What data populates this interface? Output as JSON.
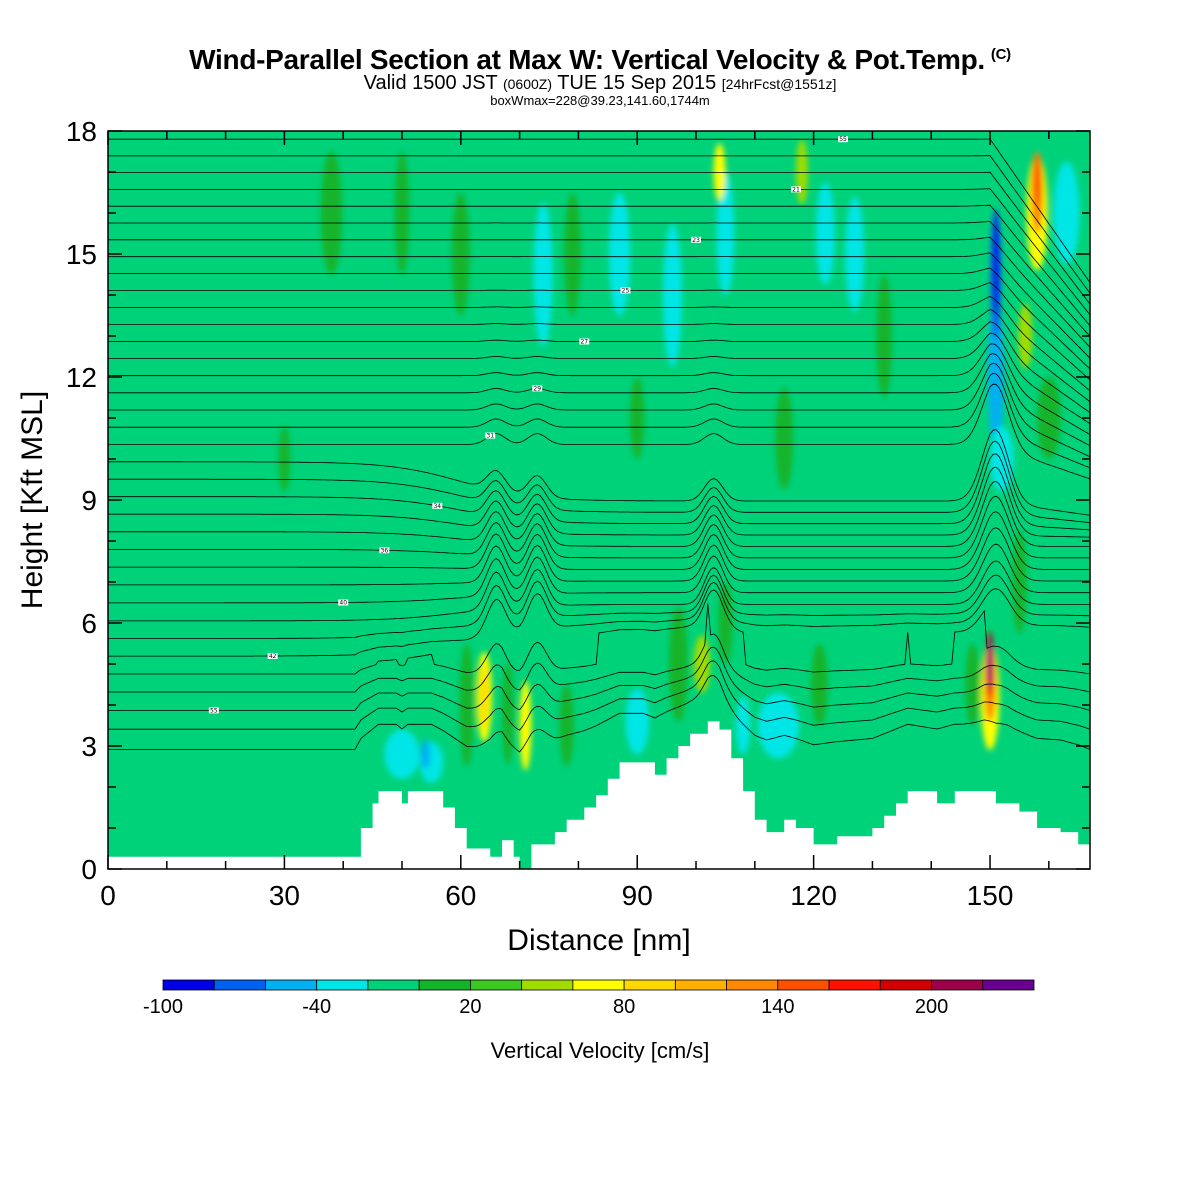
{
  "header": {
    "title_main": "Wind-Parallel Section at Max W: Vertical Velocity & Pot.Temp.",
    "title_mark": "(C)",
    "valid_prefix": "Valid 1500 JST",
    "valid_utc": "(0600Z)",
    "valid_date": "TUE 15 Sep 2015",
    "forecast": "[24hrFcst@1551z]",
    "box_info": "boxWmax=228@39.23,141.60,1744m"
  },
  "chart_data": {
    "type": "heatmap",
    "xlabel": "Distance [nm]",
    "ylabel": "Height [Kft MSL]",
    "xlim": [
      0,
      167
    ],
    "ylim": [
      0,
      18
    ],
    "x_ticks": [
      0,
      30,
      60,
      90,
      120,
      150
    ],
    "y_ticks": [
      0,
      3,
      6,
      9,
      12,
      15,
      18
    ],
    "colorbar": {
      "title": "Vertical Velocity [cm/s]",
      "labels": [
        "-100",
        "-40",
        "20",
        "80",
        "140",
        "200"
      ],
      "colors": [
        "#0000e6",
        "#0060f0",
        "#00b0f0",
        "#00e6e6",
        "#00d27a",
        "#12b42a",
        "#3cc820",
        "#a0dc00",
        "#ffff00",
        "#ffd800",
        "#ffb000",
        "#ff8800",
        "#ff5000",
        "#ff1000",
        "#d20000",
        "#9c0048",
        "#6a0090"
      ]
    },
    "background_color": "#00d27a",
    "terrain": [
      [
        0,
        0.3
      ],
      [
        42,
        0.3
      ],
      [
        43,
        1.0
      ],
      [
        45,
        1.6
      ],
      [
        46,
        1.9
      ],
      [
        49,
        1.9
      ],
      [
        50,
        1.6
      ],
      [
        51,
        1.9
      ],
      [
        55,
        1.9
      ],
      [
        57,
        1.5
      ],
      [
        59,
        1.0
      ],
      [
        61,
        0.5
      ],
      [
        65,
        0.3
      ],
      [
        67,
        0.7
      ],
      [
        69,
        0.3
      ],
      [
        70,
        0.0
      ],
      [
        72,
        0.6
      ],
      [
        76,
        0.9
      ],
      [
        78,
        1.2
      ],
      [
        81,
        1.5
      ],
      [
        83,
        1.8
      ],
      [
        85,
        2.2
      ],
      [
        87,
        2.6
      ],
      [
        91,
        2.6
      ],
      [
        93,
        2.3
      ],
      [
        95,
        2.7
      ],
      [
        97,
        3.0
      ],
      [
        99,
        3.3
      ],
      [
        102,
        3.6
      ],
      [
        104,
        3.4
      ],
      [
        106,
        2.7
      ],
      [
        108,
        1.9
      ],
      [
        110,
        1.2
      ],
      [
        112,
        0.9
      ],
      [
        115,
        1.2
      ],
      [
        117,
        1.0
      ],
      [
        120,
        0.6
      ],
      [
        124,
        0.8
      ],
      [
        130,
        1.0
      ],
      [
        132,
        1.3
      ],
      [
        134,
        1.6
      ],
      [
        136,
        1.9
      ],
      [
        141,
        1.6
      ],
      [
        144,
        1.9
      ],
      [
        149,
        1.9
      ],
      [
        151,
        1.6
      ],
      [
        153,
        1.6
      ],
      [
        155,
        1.4
      ],
      [
        158,
        1.0
      ],
      [
        162,
        0.9
      ],
      [
        165,
        0.6
      ],
      [
        167,
        0.3
      ]
    ],
    "blobs": [
      {
        "x": 151,
        "y": 12.0,
        "w": 1.4,
        "h": 3.6,
        "c": "#00b0f0"
      },
      {
        "x": 151,
        "y": 14.5,
        "w": 0.9,
        "h": 3.2,
        "c": "#0060f0"
      },
      {
        "x": 151,
        "y": 14.8,
        "w": 0.5,
        "h": 2.6,
        "c": "#0000e6"
      },
      {
        "x": 152,
        "y": 10.0,
        "w": 2.0,
        "h": 1.6,
        "c": "#00e6e6"
      },
      {
        "x": 150,
        "y": 4.2,
        "w": 1.6,
        "h": 2.6,
        "c": "#ffff00"
      },
      {
        "x": 150,
        "y": 4.6,
        "w": 1.0,
        "h": 2.0,
        "c": "#ff8800"
      },
      {
        "x": 150,
        "y": 5.0,
        "w": 0.6,
        "h": 1.6,
        "c": "#d20000"
      },
      {
        "x": 150,
        "y": 5.0,
        "w": 0.3,
        "h": 1.2,
        "c": "#6a0090"
      },
      {
        "x": 158,
        "y": 16.0,
        "w": 1.8,
        "h": 2.8,
        "c": "#ffff00"
      },
      {
        "x": 158,
        "y": 16.5,
        "w": 1.0,
        "h": 2.0,
        "c": "#ff8800"
      },
      {
        "x": 158,
        "y": 16.8,
        "w": 0.5,
        "h": 1.2,
        "c": "#ff5000"
      },
      {
        "x": 156,
        "y": 13.0,
        "w": 1.2,
        "h": 1.6,
        "c": "#a0dc00"
      },
      {
        "x": 163,
        "y": 16.0,
        "w": 2.2,
        "h": 2.5,
        "c": "#00e6e6"
      },
      {
        "x": 64,
        "y": 4.2,
        "w": 1.3,
        "h": 2.2,
        "c": "#ffff00"
      },
      {
        "x": 64,
        "y": 4.2,
        "w": 0.6,
        "h": 1.6,
        "c": "#ffd800"
      },
      {
        "x": 71,
        "y": 3.5,
        "w": 1.0,
        "h": 2.2,
        "c": "#ffff00"
      },
      {
        "x": 101,
        "y": 5.0,
        "w": 1.4,
        "h": 1.4,
        "c": "#a0dc00"
      },
      {
        "x": 105,
        "y": 15.5,
        "w": 1.5,
        "h": 3.0,
        "c": "#00e6e6"
      },
      {
        "x": 104,
        "y": 17.0,
        "w": 1.0,
        "h": 1.4,
        "c": "#ffff00"
      },
      {
        "x": 118,
        "y": 17.0,
        "w": 1.0,
        "h": 1.6,
        "c": "#a0dc00"
      },
      {
        "x": 50,
        "y": 2.8,
        "w": 3.0,
        "h": 1.2,
        "c": "#00e6e6"
      },
      {
        "x": 55,
        "y": 2.6,
        "w": 2.0,
        "h": 1.0,
        "c": "#00e6e6"
      },
      {
        "x": 54,
        "y": 2.8,
        "w": 0.8,
        "h": 0.7,
        "c": "#00b0f0"
      },
      {
        "x": 90,
        "y": 3.6,
        "w": 2.0,
        "h": 1.6,
        "c": "#00e6e6"
      },
      {
        "x": 114,
        "y": 3.5,
        "w": 3.5,
        "h": 1.6,
        "c": "#00e6e6"
      },
      {
        "x": 108,
        "y": 3.5,
        "w": 1.2,
        "h": 1.4,
        "c": "#00e6e6"
      },
      {
        "x": 74,
        "y": 14.5,
        "w": 1.6,
        "h": 3.5,
        "c": "#00e6e6"
      },
      {
        "x": 87,
        "y": 15.0,
        "w": 1.8,
        "h": 3.0,
        "c": "#00e6e6"
      },
      {
        "x": 96,
        "y": 14.0,
        "w": 1.6,
        "h": 3.5,
        "c": "#00e6e6"
      },
      {
        "x": 122,
        "y": 15.5,
        "w": 1.6,
        "h": 2.5,
        "c": "#00e6e6"
      },
      {
        "x": 127,
        "y": 15.0,
        "w": 1.6,
        "h": 2.8,
        "c": "#00e6e6"
      },
      {
        "x": 38,
        "y": 16.0,
        "w": 1.8,
        "h": 3.0,
        "c": "#12b42a"
      },
      {
        "x": 50,
        "y": 16.0,
        "w": 1.2,
        "h": 3.0,
        "c": "#12b42a"
      },
      {
        "x": 60,
        "y": 15.0,
        "w": 1.5,
        "h": 3.0,
        "c": "#12b42a"
      },
      {
        "x": 79,
        "y": 15.0,
        "w": 1.4,
        "h": 3.0,
        "c": "#12b42a"
      },
      {
        "x": 90,
        "y": 11.0,
        "w": 1.2,
        "h": 2.0,
        "c": "#12b42a"
      },
      {
        "x": 115,
        "y": 10.5,
        "w": 1.5,
        "h": 2.5,
        "c": "#12b42a"
      },
      {
        "x": 132,
        "y": 13.0,
        "w": 1.3,
        "h": 3.0,
        "c": "#12b42a"
      },
      {
        "x": 30,
        "y": 10.0,
        "w": 1.0,
        "h": 1.6,
        "c": "#12b42a"
      },
      {
        "x": 61,
        "y": 4.0,
        "w": 1.2,
        "h": 3.0,
        "c": "#12b42a"
      },
      {
        "x": 68,
        "y": 3.8,
        "w": 1.0,
        "h": 2.5,
        "c": "#12b42a"
      },
      {
        "x": 78,
        "y": 3.5,
        "w": 1.2,
        "h": 2.0,
        "c": "#12b42a"
      },
      {
        "x": 97,
        "y": 5.0,
        "w": 1.6,
        "h": 2.8,
        "c": "#12b42a"
      },
      {
        "x": 105,
        "y": 6.0,
        "w": 1.2,
        "h": 2.0,
        "c": "#12b42a"
      },
      {
        "x": 121,
        "y": 4.5,
        "w": 1.4,
        "h": 2.0,
        "c": "#12b42a"
      },
      {
        "x": 147,
        "y": 4.5,
        "w": 1.2,
        "h": 2.0,
        "c": "#12b42a"
      },
      {
        "x": 155,
        "y": 7.0,
        "w": 1.2,
        "h": 2.5,
        "c": "#12b42a"
      },
      {
        "x": 160,
        "y": 11.0,
        "w": 2.0,
        "h": 2.0,
        "c": "#12b42a"
      }
    ],
    "isentropes": {
      "count": 36,
      "y_left_min": 2.8,
      "y_left_max": 17.8,
      "ridge_x": [
        66,
        73,
        103,
        151
      ],
      "label_values": [
        "55",
        "42",
        "40",
        "36",
        "34",
        "31",
        "29",
        "27",
        "25",
        "23",
        "21"
      ]
    }
  }
}
